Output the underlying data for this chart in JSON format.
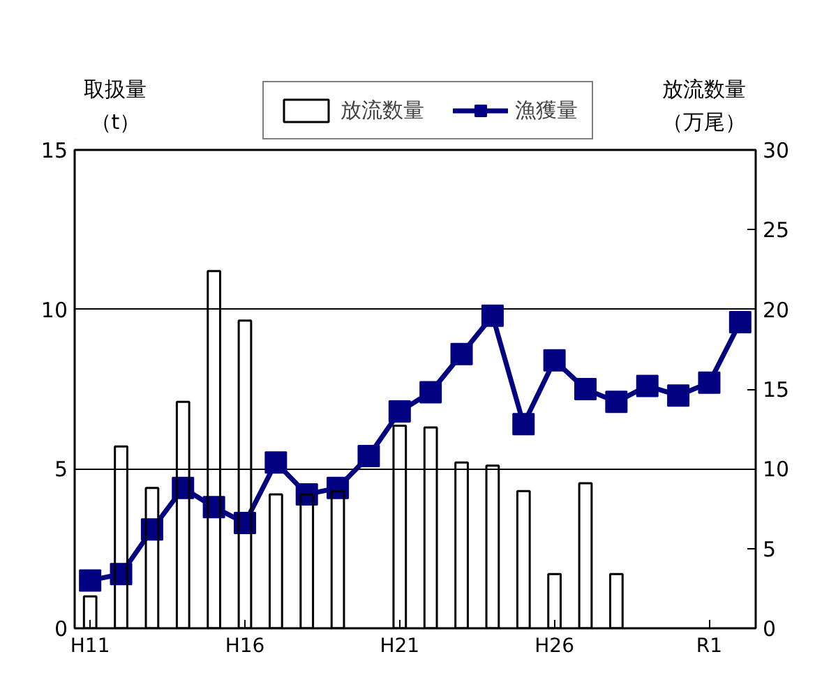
{
  "chart_data": {
    "type": "bar",
    "categories": [
      "H11",
      null,
      null,
      null,
      null,
      "H16",
      null,
      null,
      null,
      null,
      "H21",
      null,
      null,
      null,
      null,
      "H26",
      null,
      null,
      null,
      null,
      "R1",
      null
    ],
    "series": [
      {
        "name": "放流数量",
        "axis": "y2",
        "color": "#000000",
        "values": [
          2.0,
          11.4,
          8.8,
          14.2,
          22.4,
          19.3,
          8.4,
          8.4,
          8.6,
          null,
          12.7,
          12.6,
          10.4,
          10.2,
          8.6,
          3.4,
          9.1,
          3.4,
          null,
          null,
          null,
          null
        ]
      },
      {
        "name": "漁獲量",
        "type": "line",
        "color": "#000080",
        "values": [
          1.5,
          1.7,
          3.1,
          4.4,
          3.8,
          3.3,
          5.2,
          4.2,
          4.4,
          5.4,
          6.8,
          7.4,
          8.6,
          9.8,
          6.4,
          8.4,
          7.5,
          7.1,
          7.6,
          7.3,
          7.7,
          9.6
        ]
      }
    ],
    "ylabel": "取扱量（t）",
    "y2label": "放流数量（万尾）",
    "ylim": [
      0,
      15
    ],
    "yticks": [
      0,
      5,
      10,
      15
    ],
    "y2lim": [
      0,
      30
    ],
    "y2ticks": [
      0,
      5,
      10,
      15,
      20,
      25,
      30
    ],
    "grid": "y",
    "legend": "top",
    "marker": "square",
    "line_style": "solid"
  }
}
